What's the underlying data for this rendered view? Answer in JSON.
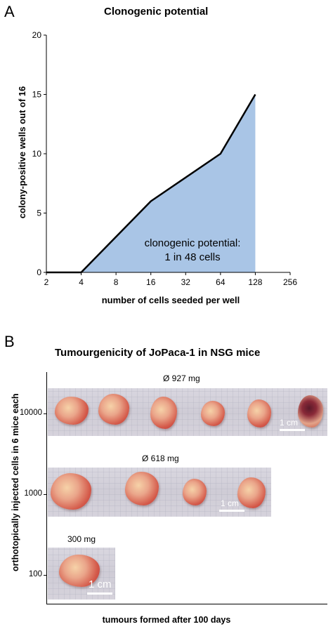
{
  "panelA": {
    "letter": "A",
    "title": "Clonogenic potential",
    "annotation_line1": "clonogenic potential:",
    "annotation_line2": "1 in 48 cells",
    "fill_color": "#a9c5e6",
    "line_color": "#000000"
  },
  "chart_data": {
    "type": "area",
    "title": "Clonogenic potential",
    "xlabel": "number of cells seeded per well",
    "ylabel": "colony-positive wells out of 16",
    "x_scale": "log2",
    "x_ticks": [
      "2",
      "4",
      "8",
      "16",
      "32",
      "64",
      "128",
      "256"
    ],
    "x_tick_values": [
      2,
      4,
      8,
      16,
      32,
      64,
      128,
      256
    ],
    "y_ticks": [
      "0",
      "5",
      "10",
      "15",
      "20"
    ],
    "y_tick_values": [
      0,
      5,
      10,
      15,
      20
    ],
    "xlim": [
      2,
      256
    ],
    "ylim": [
      0,
      20
    ],
    "grid": false,
    "series": [
      {
        "x": [
          4,
          16,
          64,
          128
        ],
        "y": [
          0,
          6,
          10,
          15
        ]
      }
    ]
  },
  "panelB": {
    "letter": "B",
    "title": "Tumourgenicity of JoPaca-1 in NSG mice",
    "ylabel": "orthotopically injected cells in 6 mice each",
    "xlabel": "tumours formed after 100 days",
    "rows": [
      {
        "ytick": "10000",
        "mass": "Ø 927 mg",
        "scale": "1 cm",
        "tumors": 6
      },
      {
        "ytick": "1000",
        "mass": "Ø 618 mg",
        "scale": "1 cm",
        "tumors": 4
      },
      {
        "ytick": "100",
        "mass": "300 mg",
        "scale": "1 cm",
        "tumors": 1
      }
    ]
  }
}
